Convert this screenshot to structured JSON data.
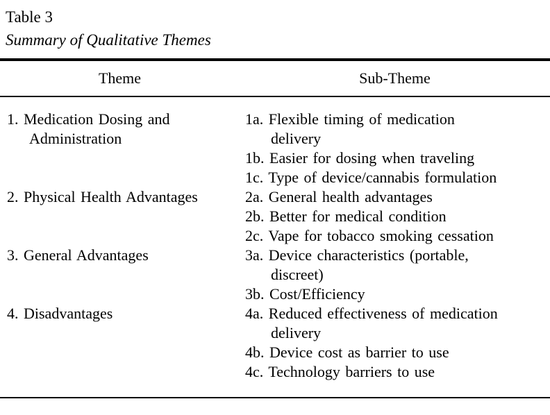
{
  "table": {
    "label": "Table 3",
    "title": "Summary of Qualitative Themes",
    "columns": {
      "theme": "Theme",
      "subtheme": "Sub-Theme"
    },
    "rows": [
      {
        "theme": "1. Medication Dosing and\nAdministration",
        "subthemes": [
          "1a. Flexible timing of medication\ndelivery",
          "1b. Easier for dosing when traveling",
          "1c. Type of device/cannabis formulation"
        ]
      },
      {
        "theme": "2. Physical Health Advantages",
        "subthemes": [
          "2a. General health advantages",
          "2b. Better for medical condition",
          "2c. Vape for tobacco smoking cessation"
        ]
      },
      {
        "theme": "3. General Advantages",
        "subthemes": [
          "3a. Device characteristics (portable,\ndiscreet)",
          "3b. Cost/Efficiency"
        ]
      },
      {
        "theme": "4. Disadvantages",
        "subthemes": [
          "4a. Reduced effectiveness of medication\ndelivery",
          "4b. Device cost as barrier to use",
          "4c. Technology barriers to use"
        ]
      }
    ],
    "colors": {
      "text": "#000000",
      "background": "#ffffff",
      "rule": "#000000"
    }
  }
}
